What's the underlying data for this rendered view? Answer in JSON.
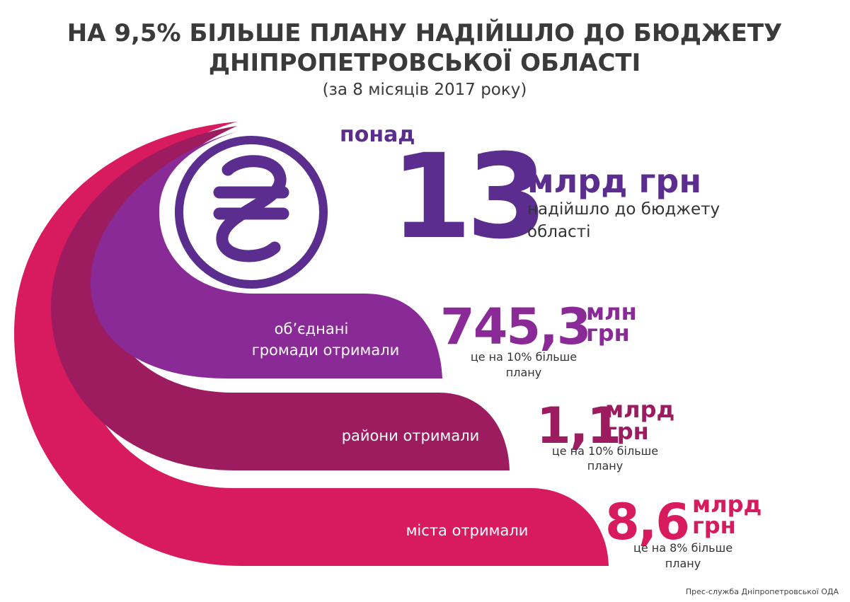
{
  "header": {
    "title_lines": [
      "НА 9,5% БІЛЬШЕ ПЛАНУ НАДІЙШЛО ДО БЮДЖЕТУ",
      "ДНІПРОПЕТРОВСЬКОЇ ОБЛАСТІ"
    ],
    "subtitle": "(за 8 місяців 2017 року)"
  },
  "total": {
    "prefix": "понад",
    "amount": "13",
    "unit": "млрд грн",
    "caption_lines": [
      "надійшло до бюджету",
      "області"
    ],
    "color": "#5b2d8e"
  },
  "items": [
    {
      "label_lines": [
        "об’єднані",
        "громади отримали"
      ],
      "value": "745,3",
      "unit_lines": [
        "млн",
        "грн"
      ],
      "note_lines": [
        "це на 10% більше",
        "плану"
      ],
      "color": "#8a2a96"
    },
    {
      "label_lines": [
        "райони отримали"
      ],
      "value": "1,1",
      "unit_lines": [
        "млрд",
        "грн"
      ],
      "note_lines": [
        "це на 10% більше",
        "плану"
      ],
      "color": "#9c1c5f"
    },
    {
      "label_lines": [
        "міста отримали"
      ],
      "value": "8,6",
      "unit_lines": [
        "млрд",
        "грн"
      ],
      "note_lines": [
        "це на 8% більше",
        "плану"
      ],
      "color": "#d81b5e"
    }
  ],
  "footer": "Прес-служба Дніпропетровської ОДА"
}
